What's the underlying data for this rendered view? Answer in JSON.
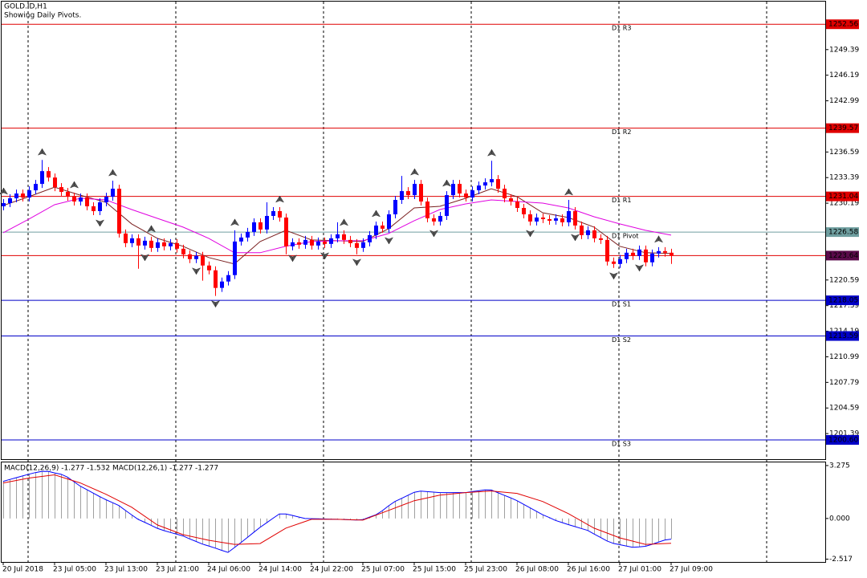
{
  "chart_data": {
    "type": "candlestick",
    "title": "GOLD.ID,H1",
    "subtitle": "Showing Daily Pivots.",
    "up_color": "#0000ff",
    "down_color": "#ff0000",
    "candles": [
      [
        1229.8,
        1230.7,
        1229.3,
        1230.2
      ],
      [
        1230.2,
        1231.3,
        1229.7,
        1230.8
      ],
      [
        1230.8,
        1231.9,
        1230.3,
        1231.4
      ],
      [
        1231.4,
        1231.9,
        1230.4,
        1230.9
      ],
      [
        1230.9,
        1232.3,
        1230.4,
        1231.8
      ],
      [
        1231.8,
        1233.1,
        1231.3,
        1232.6
      ],
      [
        1232.6,
        1235.6,
        1232.1,
        1234.2
      ],
      [
        1234.2,
        1234.7,
        1232.9,
        1233.4
      ],
      [
        1233.4,
        1233.9,
        1231.7,
        1232.2
      ],
      [
        1232.2,
        1232.7,
        1231.1,
        1231.6
      ],
      [
        1231.6,
        1232.1,
        1230.5,
        1231.0
      ],
      [
        1231.0,
        1231.5,
        1229.9,
        1230.4
      ],
      [
        1230.4,
        1231.4,
        1229.9,
        1230.9
      ],
      [
        1230.9,
        1231.4,
        1229.3,
        1229.8
      ],
      [
        1229.8,
        1230.3,
        1228.7,
        1229.2
      ],
      [
        1229.2,
        1230.8,
        1228.7,
        1230.3
      ],
      [
        1230.3,
        1231.5,
        1229.8,
        1231.0
      ],
      [
        1231.0,
        1233.0,
        1230.5,
        1232.0
      ],
      [
        1232.0,
        1232.5,
        1225.9,
        1226.4
      ],
      [
        1226.4,
        1226.9,
        1224.7,
        1225.2
      ],
      [
        1225.2,
        1226.3,
        1224.7,
        1225.8
      ],
      [
        1225.8,
        1226.3,
        1222.0,
        1224.9
      ],
      [
        1224.9,
        1226.0,
        1224.4,
        1225.5
      ],
      [
        1225.5,
        1226.0,
        1224.1,
        1224.6
      ],
      [
        1224.6,
        1225.8,
        1224.1,
        1225.3
      ],
      [
        1225.3,
        1225.8,
        1224.3,
        1224.8
      ],
      [
        1224.8,
        1225.7,
        1224.3,
        1225.2
      ],
      [
        1225.2,
        1225.7,
        1224.0,
        1224.5
      ],
      [
        1224.5,
        1225.0,
        1223.3,
        1223.8
      ],
      [
        1223.8,
        1224.3,
        1222.7,
        1223.2
      ],
      [
        1223.2,
        1224.1,
        1222.7,
        1223.6
      ],
      [
        1223.6,
        1224.1,
        1220.5,
        1222.4
      ],
      [
        1222.4,
        1222.9,
        1221.3,
        1221.8
      ],
      [
        1221.8,
        1222.3,
        1218.6,
        1219.6
      ],
      [
        1219.6,
        1220.9,
        1219.1,
        1220.4
      ],
      [
        1220.4,
        1221.7,
        1219.9,
        1221.2
      ],
      [
        1221.2,
        1226.8,
        1220.7,
        1225.4
      ],
      [
        1225.4,
        1226.4,
        1224.9,
        1225.9
      ],
      [
        1225.9,
        1227.1,
        1225.4,
        1226.6
      ],
      [
        1226.6,
        1228.3,
        1226.1,
        1227.8
      ],
      [
        1227.8,
        1228.3,
        1226.4,
        1226.9
      ],
      [
        1226.9,
        1230.3,
        1226.4,
        1228.6
      ],
      [
        1228.6,
        1229.7,
        1228.1,
        1229.2
      ],
      [
        1229.2,
        1229.7,
        1227.9,
        1228.4
      ],
      [
        1228.4,
        1228.9,
        1223.8,
        1224.8
      ],
      [
        1224.8,
        1225.8,
        1224.3,
        1225.3
      ],
      [
        1225.3,
        1225.8,
        1224.5,
        1225.0
      ],
      [
        1225.0,
        1226.1,
        1224.5,
        1225.6
      ],
      [
        1225.6,
        1226.1,
        1224.4,
        1224.9
      ],
      [
        1224.9,
        1225.9,
        1224.4,
        1225.4
      ],
      [
        1225.4,
        1225.9,
        1224.6,
        1225.1
      ],
      [
        1225.1,
        1226.3,
        1224.6,
        1225.8
      ],
      [
        1225.8,
        1227.8,
        1225.3,
        1226.3
      ],
      [
        1226.3,
        1226.8,
        1225.1,
        1225.6
      ],
      [
        1225.6,
        1226.1,
        1224.7,
        1225.2
      ],
      [
        1225.2,
        1225.7,
        1223.8,
        1224.6
      ],
      [
        1224.6,
        1225.8,
        1224.1,
        1225.3
      ],
      [
        1225.3,
        1226.7,
        1224.8,
        1226.2
      ],
      [
        1226.2,
        1227.9,
        1225.7,
        1227.4
      ],
      [
        1227.4,
        1227.9,
        1226.5,
        1227.0
      ],
      [
        1227.0,
        1229.3,
        1226.5,
        1228.8
      ],
      [
        1228.8,
        1231.1,
        1228.3,
        1230.6
      ],
      [
        1230.6,
        1233.6,
        1230.1,
        1231.7
      ],
      [
        1231.7,
        1232.2,
        1230.7,
        1231.2
      ],
      [
        1231.2,
        1233.1,
        1230.7,
        1232.6
      ],
      [
        1232.6,
        1233.1,
        1229.9,
        1230.4
      ],
      [
        1230.4,
        1230.9,
        1227.8,
        1228.3
      ],
      [
        1228.3,
        1228.8,
        1227.4,
        1227.9
      ],
      [
        1227.9,
        1229.1,
        1227.4,
        1228.6
      ],
      [
        1228.6,
        1231.7,
        1228.1,
        1231.2
      ],
      [
        1231.2,
        1233.1,
        1230.7,
        1232.6
      ],
      [
        1232.6,
        1233.1,
        1230.9,
        1231.4
      ],
      [
        1231.4,
        1231.9,
        1230.4,
        1230.9
      ],
      [
        1230.9,
        1232.3,
        1230.4,
        1231.8
      ],
      [
        1231.8,
        1232.9,
        1231.3,
        1232.4
      ],
      [
        1232.4,
        1233.3,
        1231.9,
        1232.8
      ],
      [
        1232.8,
        1235.5,
        1232.3,
        1233.2
      ],
      [
        1233.2,
        1233.7,
        1231.5,
        1232.0
      ],
      [
        1232.0,
        1232.5,
        1230.3,
        1230.8
      ],
      [
        1230.8,
        1231.3,
        1229.9,
        1230.4
      ],
      [
        1230.4,
        1230.9,
        1229.1,
        1229.6
      ],
      [
        1229.6,
        1230.1,
        1228.3,
        1228.8
      ],
      [
        1228.8,
        1229.3,
        1227.4,
        1227.9
      ],
      [
        1227.9,
        1228.9,
        1227.4,
        1228.4
      ],
      [
        1228.4,
        1228.9,
        1227.7,
        1228.2
      ],
      [
        1228.2,
        1228.7,
        1227.5,
        1228.0
      ],
      [
        1228.0,
        1228.8,
        1227.5,
        1228.3
      ],
      [
        1228.3,
        1228.8,
        1227.3,
        1227.8
      ],
      [
        1227.8,
        1230.6,
        1227.3,
        1229.2
      ],
      [
        1229.2,
        1229.7,
        1226.9,
        1227.4
      ],
      [
        1227.4,
        1227.9,
        1225.7,
        1226.2
      ],
      [
        1226.2,
        1227.3,
        1225.7,
        1226.8
      ],
      [
        1226.8,
        1227.3,
        1225.3,
        1225.8
      ],
      [
        1225.8,
        1226.3,
        1225.1,
        1225.6
      ],
      [
        1225.6,
        1226.1,
        1222.4,
        1222.9
      ],
      [
        1222.9,
        1223.4,
        1222.1,
        1222.6
      ],
      [
        1222.6,
        1223.7,
        1222.1,
        1223.2
      ],
      [
        1223.2,
        1224.5,
        1222.7,
        1224.0
      ],
      [
        1224.0,
        1224.5,
        1223.1,
        1223.6
      ],
      [
        1223.6,
        1224.9,
        1223.1,
        1224.4
      ],
      [
        1224.4,
        1224.9,
        1222.3,
        1222.8
      ],
      [
        1222.8,
        1224.4,
        1222.3,
        1223.9
      ],
      [
        1223.9,
        1224.7,
        1223.4,
        1224.2
      ],
      [
        1224.2,
        1224.7,
        1223.5,
        1224.0
      ],
      [
        1224.0,
        1224.5,
        1222.6,
        1223.64
      ]
    ],
    "xlim": [
      -0.5,
      128
    ],
    "xticks": [
      {
        "value": 0,
        "label": "20 Jul 2018"
      },
      {
        "value": 8,
        "label": "23 Jul 05:00"
      },
      {
        "value": 16,
        "label": "23 Jul 13:00"
      },
      {
        "value": 24,
        "label": "23 Jul 21:00"
      },
      {
        "value": 32,
        "label": "24 Jul 06:00"
      },
      {
        "value": 40,
        "label": "24 Jul 14:00"
      },
      {
        "value": 48,
        "label": "24 Jul 22:00"
      },
      {
        "value": 56,
        "label": "25 Jul 07:00"
      },
      {
        "value": 64,
        "label": "25 Jul 15:00"
      },
      {
        "value": 72,
        "label": "25 Jul 23:00"
      },
      {
        "value": 80,
        "label": "26 Jul 08:00"
      },
      {
        "value": 88,
        "label": "26 Jul 16:00"
      },
      {
        "value": 96,
        "label": "27 Jul 01:00"
      },
      {
        "value": 104,
        "label": "27 Jul 09:00"
      }
    ],
    "period_separators": [
      3.875,
      26.875,
      49.875,
      72.875,
      95.875,
      118.875
    ],
    "ylim": [
      1198.19,
      1255.39
    ],
    "yticks": [
      1249.39,
      1246.19,
      1242.99,
      1236.59,
      1233.39,
      1230.19,
      1220.59,
      1217.39,
      1214.19,
      1210.99,
      1207.79,
      1204.59,
      1201.39
    ],
    "series": [
      {
        "color": "#7a1f1f",
        "x": [
          0,
          4,
          8,
          12,
          16,
          20,
          24,
          28,
          32,
          36,
          40,
          44,
          48,
          52,
          56,
          60,
          64,
          68,
          72,
          76,
          80,
          84,
          88,
          92,
          96,
          100,
          104
        ],
        "values": [
          1229.9,
          1231.0,
          1232.2,
          1231.2,
          1230.3,
          1227.6,
          1225.8,
          1224.8,
          1223.4,
          1222.6,
          1225.4,
          1226.8,
          1225.6,
          1225.5,
          1225.4,
          1227.0,
          1229.6,
          1229.8,
          1230.8,
          1232.0,
          1231.0,
          1229.0,
          1228.4,
          1227.2,
          1224.8,
          1224.0,
          1223.9
        ]
      },
      {
        "color": "#e000e0",
        "x": [
          0,
          4,
          8,
          12,
          16,
          20,
          24,
          28,
          32,
          36,
          40,
          44,
          48,
          52,
          56,
          60,
          64,
          68,
          72,
          76,
          80,
          84,
          88,
          92,
          96,
          100,
          104
        ],
        "values": [
          1226.5,
          1228.2,
          1230.0,
          1230.8,
          1230.6,
          1229.4,
          1228.3,
          1227.2,
          1225.8,
          1224.0,
          1224.0,
          1224.8,
          1225.4,
          1225.5,
          1225.5,
          1226.4,
          1228.0,
          1229.4,
          1230.1,
          1230.6,
          1230.4,
          1230.2,
          1229.6,
          1228.5,
          1227.6,
          1226.8,
          1226.2
        ]
      }
    ],
    "fractals_up": [
      0,
      6,
      11,
      17,
      23,
      36,
      43,
      53,
      58,
      64,
      69,
      76,
      88,
      102
    ],
    "fractals_down": [
      15,
      22,
      30,
      33,
      45,
      50,
      55,
      60,
      67,
      82,
      89,
      95,
      99
    ],
    "pivots": [
      {
        "label": "D1 R3",
        "value": 1252.56,
        "value_label": "1252.56",
        "color": "#e00000"
      },
      {
        "label": "D1 R2",
        "value": 1239.57,
        "value_label": "1239.57",
        "color": "#e00000"
      },
      {
        "label": "D1 R1",
        "value": 1231.04,
        "value_label": "1231.04",
        "color": "#e00000"
      },
      {
        "label": "D1 Pivot",
        "value": 1226.58,
        "value_label": "1226.58",
        "color": "#6f9fa0"
      },
      {
        "label": "D1 S1",
        "value": 1218.05,
        "value_label": "1218.05",
        "color": "#0000c8"
      },
      {
        "label": "D1 S2",
        "value": 1213.59,
        "value_label": "1213.59",
        "color": "#0000c8"
      },
      {
        "label": "D1 S3",
        "value": 1200.6,
        "value_label": "1200.60",
        "color": "#0000c8"
      }
    ],
    "bid": {
      "value": 1223.64,
      "color": "#e00000",
      "box_color": "#5a0a4a"
    },
    "macd": {
      "label": "MACD(12,26,9) -1.277 -1.532 MACD(12,26,1) -1.277 -1.277",
      "ylim": [
        -2.69,
        3.47
      ],
      "yticks": [
        3.275,
        {
          "value": 0,
          "label": "0.000"
        },
        -2.517
      ],
      "hist_color": "#a0a0a0",
      "line_color": "#0000ff",
      "histogram": [
        2.3,
        2.41,
        2.52,
        2.63,
        2.74,
        2.84,
        2.91,
        2.92,
        2.82,
        2.74,
        2.56,
        2.28,
        2.0,
        1.79,
        1.57,
        1.36,
        1.16,
        0.98,
        0.8,
        0.51,
        0.22,
        -0.05,
        -0.23,
        -0.42,
        -0.61,
        -0.75,
        -0.86,
        -0.97,
        -1.08,
        -1.26,
        -1.42,
        -1.58,
        -1.7,
        -1.83,
        -1.97,
        -2.1,
        -1.8,
        -1.5,
        -1.18,
        -0.86,
        -0.55,
        -0.27,
        0.01,
        0.28,
        0.28,
        0.19,
        0.09,
        0.0,
        -0.01,
        -0.02,
        -0.03,
        -0.04,
        -0.05,
        -0.06,
        -0.08,
        -0.09,
        -0.07,
        0.08,
        0.22,
        0.47,
        0.78,
        1.05,
        1.24,
        1.43,
        1.62,
        1.69,
        1.66,
        1.63,
        1.6,
        1.6,
        1.6,
        1.6,
        1.6,
        1.66,
        1.71,
        1.77,
        1.76,
        1.6,
        1.44,
        1.28,
        1.1,
        0.88,
        0.67,
        0.45,
        0.23,
        0.06,
        -0.12,
        -0.25,
        -0.38,
        -0.5,
        -0.62,
        -0.74,
        -0.96,
        -1.17,
        -1.39,
        -1.54,
        -1.62,
        -1.7,
        -1.78,
        -1.76,
        -1.72,
        -1.6,
        -1.47,
        -1.34,
        -1.277
      ],
      "signal": {
        "color": "#e00000",
        "x": [
          0,
          4,
          8,
          12,
          16,
          20,
          24,
          28,
          32,
          36,
          40,
          44,
          48,
          52,
          56,
          60,
          64,
          68,
          72,
          76,
          80,
          84,
          88,
          92,
          96,
          100,
          104
        ],
        "values": [
          2.2,
          2.5,
          2.7,
          2.2,
          1.5,
          0.7,
          -0.4,
          -1.0,
          -1.35,
          -1.6,
          -1.55,
          -0.6,
          -0.05,
          -0.05,
          -0.1,
          0.5,
          1.1,
          1.45,
          1.6,
          1.7,
          1.55,
          1.05,
          0.3,
          -0.6,
          -1.2,
          -1.6,
          -1.532
        ]
      }
    }
  }
}
